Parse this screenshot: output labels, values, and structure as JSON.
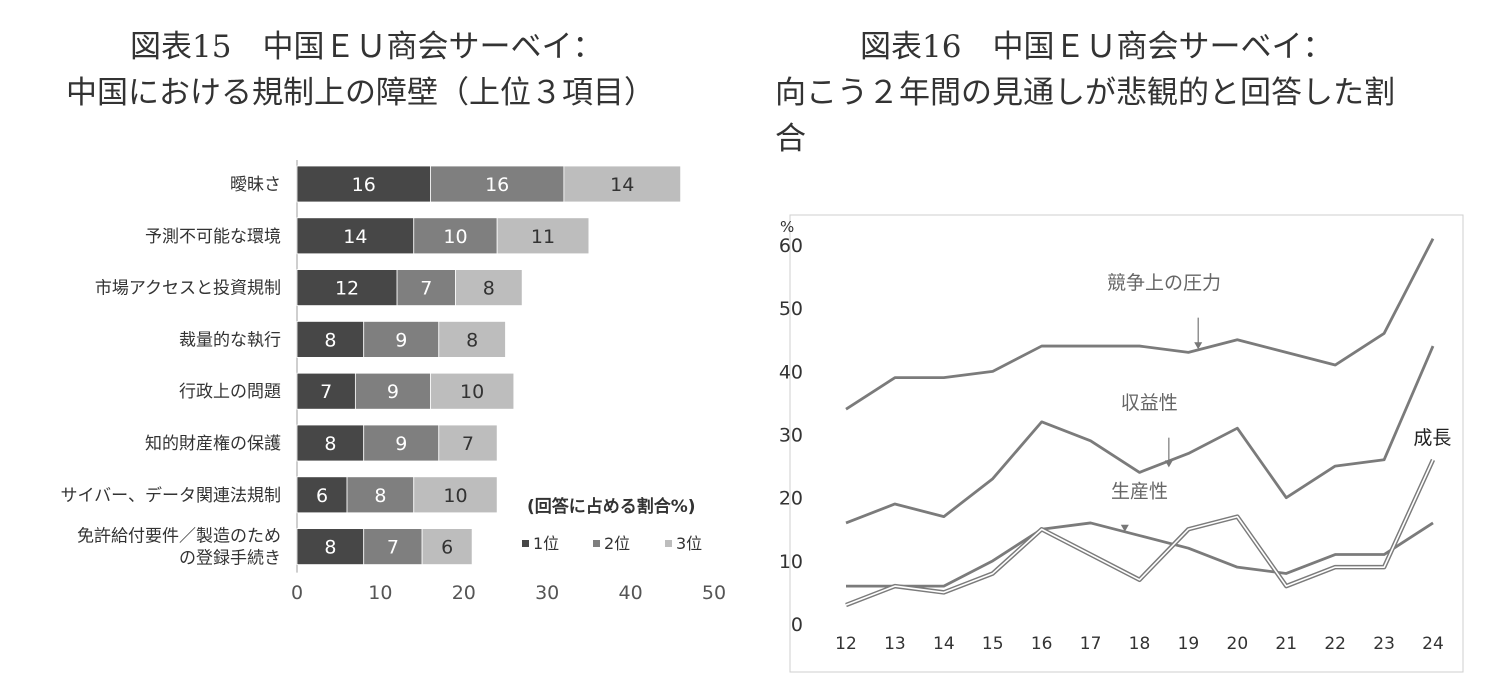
{
  "left_panel": {
    "title_line1": "図表15　中国ＥＵ商会サーベイ：",
    "title_line2": "中国における規制上の障壁（上位３項目）"
  },
  "right_panel": {
    "title_line1": "図表16　中国ＥＵ商会サーベイ：",
    "title_line2": "向こう２年間の見通しが悲観的と回答した割",
    "title_line3": "合"
  },
  "colors": {
    "rank1": "#474747",
    "rank2": "#7f7f7f",
    "rank3": "#bdbdbd",
    "line": "#7b7b7b",
    "axis": "#bfbfbf"
  },
  "chart_data": [
    {
      "type": "bar",
      "stacked": true,
      "orientation": "horizontal",
      "categories": [
        "曖昧さ",
        "予測不可能な環境",
        "市場アクセスと投資規制",
        "裁量的な執行",
        "行政上の問題",
        "知的財産権の保護",
        "サイバー、データ関連法規制",
        "免許給付要件／製造のための登録手続き"
      ],
      "category_lines": [
        [
          "曖昧さ"
        ],
        [
          "予測不可能な環境"
        ],
        [
          "市場アクセスと投資規制"
        ],
        [
          "裁量的な執行"
        ],
        [
          "行政上の問題"
        ],
        [
          "知的財産権の保護"
        ],
        [
          "サイバー、データ関連法規制"
        ],
        [
          "免許給付要件／製造のため",
          "の登録手続き"
        ]
      ],
      "series": [
        {
          "name": "1位",
          "values": [
            16,
            14,
            12,
            8,
            7,
            8,
            6,
            8
          ]
        },
        {
          "name": "2位",
          "values": [
            16,
            10,
            7,
            9,
            9,
            9,
            8,
            7
          ]
        },
        {
          "name": "3位",
          "values": [
            14,
            11,
            8,
            8,
            10,
            7,
            10,
            6
          ]
        }
      ],
      "xlim": [
        0,
        50
      ],
      "xticks": [
        0,
        10,
        20,
        30,
        40,
        50
      ],
      "unit_note": "(回答に占める割合%)",
      "legend_position": "bottom-right",
      "grid": false
    },
    {
      "type": "line",
      "x": [
        12,
        13,
        14,
        15,
        16,
        17,
        18,
        19,
        20,
        21,
        22,
        23,
        24
      ],
      "series": [
        {
          "name": "競争上の圧力",
          "values": [
            34,
            39,
            39,
            40,
            44,
            44,
            44,
            43,
            45,
            43,
            41,
            46,
            61
          ],
          "style": "single"
        },
        {
          "name": "収益性",
          "values": [
            16,
            19,
            17,
            23,
            32,
            29,
            24,
            27,
            31,
            20,
            25,
            26,
            44
          ],
          "style": "single"
        },
        {
          "name": "生産性",
          "values": [
            6,
            6,
            6,
            10,
            15,
            16,
            14,
            12,
            9,
            8,
            11,
            11,
            16
          ],
          "style": "single"
        },
        {
          "name": "成長",
          "values": [
            3,
            6,
            5,
            8,
            15,
            11,
            7,
            15,
            17,
            6,
            9,
            9,
            26
          ],
          "style": "double"
        }
      ],
      "ylim": [
        0,
        60
      ],
      "yticks": [
        0,
        10,
        20,
        30,
        40,
        50,
        60
      ],
      "yunit": "%",
      "grid": false
    }
  ]
}
